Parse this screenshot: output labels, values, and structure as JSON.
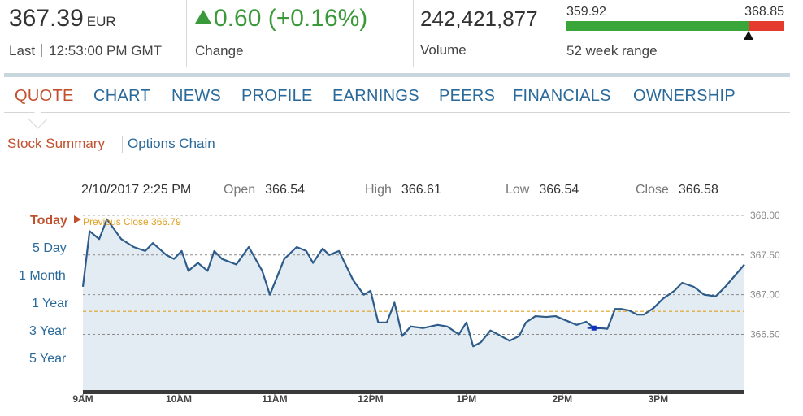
{
  "quote": {
    "price": "367.39",
    "currency": "EUR",
    "last_label": "Last",
    "time": "12:53:00 PM GMT",
    "change_value": "0.60 (+0.16%)",
    "change_label": "Change",
    "volume": "242,421,877",
    "volume_label": "Volume",
    "range_low": "359.92",
    "range_high": "368.85",
    "range_label": "52 week range",
    "range_position": 0.836
  },
  "colors": {
    "accent": "#c0502e",
    "link": "#2a6a9a",
    "up": "#3a9a3a",
    "down": "#e53b2e",
    "line": "#2d5b8a",
    "fill": "#e3ecf3",
    "prev_close": "#e0a020"
  },
  "tabs": [
    {
      "label": "QUOTE",
      "active": true
    },
    {
      "label": "CHART"
    },
    {
      "label": "NEWS"
    },
    {
      "label": "PROFILE"
    },
    {
      "label": "EARNINGS"
    },
    {
      "label": "PEERS"
    },
    {
      "label": "FINANCIALS"
    },
    {
      "label": "OWNERSHIP"
    }
  ],
  "subtabs": [
    {
      "label": "Stock Summary",
      "active": true
    },
    {
      "label": "Options Chain"
    }
  ],
  "info": {
    "datetime": "2/10/2017 2:25 PM",
    "open_label": "Open",
    "open": "366.54",
    "high_label": "High",
    "high": "366.61",
    "low_label": "Low",
    "low": "366.54",
    "close_label": "Close",
    "close": "366.58"
  },
  "ranges": [
    "Today",
    "5 Day",
    "1 Month",
    "1 Year",
    "3 Year",
    "5 Year"
  ],
  "prev_close_label": "Previous Close 366.79",
  "chart_data": {
    "type": "area",
    "y_ticks": [
      "368.00",
      "367.50",
      "367.00",
      "366.50"
    ],
    "x_ticks": [
      "9AM",
      "10AM",
      "11AM",
      "12PM",
      "1PM",
      "2PM",
      "3PM"
    ],
    "ylim": [
      365.8,
      368.05
    ],
    "xlim": [
      9.0,
      15.9
    ],
    "prev_close": 366.79,
    "x": [
      9.0,
      9.07,
      9.17,
      9.25,
      9.4,
      9.53,
      9.65,
      9.73,
      9.87,
      9.95,
      10.03,
      10.1,
      10.2,
      10.3,
      10.37,
      10.45,
      10.6,
      10.73,
      10.87,
      10.95,
      11.1,
      11.23,
      11.33,
      11.4,
      11.5,
      11.57,
      11.67,
      11.82,
      11.93,
      12.0,
      12.08,
      12.17,
      12.25,
      12.33,
      12.42,
      12.55,
      12.7,
      12.8,
      12.92,
      13.0,
      13.07,
      13.15,
      13.25,
      13.33,
      13.45,
      13.55,
      13.62,
      13.72,
      13.83,
      13.93,
      14.05,
      14.15,
      14.25,
      14.33,
      14.4,
      14.47,
      14.55,
      14.62,
      14.7,
      14.78,
      14.85,
      14.95,
      15.05,
      15.17,
      15.25,
      15.37,
      15.48,
      15.6,
      15.7,
      15.9
    ],
    "y": [
      367.1,
      367.8,
      367.7,
      367.95,
      367.7,
      367.6,
      367.55,
      367.65,
      367.5,
      367.45,
      367.55,
      367.3,
      367.4,
      367.3,
      367.55,
      367.45,
      367.38,
      367.6,
      367.3,
      367.0,
      367.45,
      367.6,
      367.55,
      367.4,
      367.58,
      367.5,
      367.55,
      367.18,
      367.0,
      367.05,
      366.65,
      366.65,
      366.9,
      366.48,
      366.6,
      366.58,
      366.62,
      366.6,
      366.5,
      366.65,
      366.35,
      366.4,
      366.55,
      366.5,
      366.42,
      366.48,
      366.65,
      366.73,
      366.72,
      366.73,
      366.67,
      366.62,
      366.66,
      366.58,
      366.58,
      366.57,
      366.82,
      366.82,
      366.8,
      366.75,
      366.75,
      366.83,
      366.95,
      367.05,
      367.15,
      367.1,
      367.0,
      366.98,
      367.1,
      367.38
    ],
    "highlight_x": 14.33
  }
}
